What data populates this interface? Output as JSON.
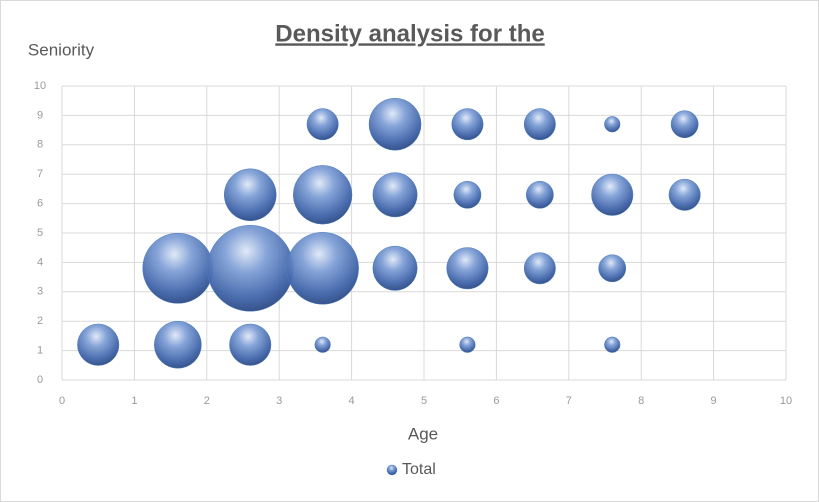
{
  "chart_data": {
    "type": "bubble",
    "title": "Density analysis for the",
    "x_label": "Age",
    "y_label": "Seniority",
    "xlim": [
      0,
      10
    ],
    "xticks": [
      0,
      1,
      2,
      3,
      4,
      5,
      6,
      7,
      8,
      9,
      10
    ],
    "ylim": [
      0,
      10
    ],
    "yticks": [
      0,
      1,
      2,
      3,
      4,
      5,
      6,
      7,
      8,
      9,
      10
    ],
    "grid": true,
    "legend": "bottom",
    "series": [
      {
        "name": "Total",
        "color": "#4f81bd",
        "x": [
          3.6,
          4.6,
          5.6,
          6.6,
          7.6,
          8.6,
          2.6,
          3.6,
          4.6,
          5.6,
          6.6,
          7.6,
          8.6,
          1.6,
          2.6,
          3.6,
          4.6,
          5.6,
          6.6,
          7.6,
          0.5,
          1.6,
          2.6,
          3.6,
          5.6,
          7.6
        ],
        "values": [
          8.7,
          8.7,
          8.7,
          8.7,
          8.7,
          8.7,
          6.3,
          6.3,
          6.3,
          6.3,
          6.3,
          6.3,
          6.3,
          3.8,
          3.8,
          3.8,
          3.8,
          3.8,
          3.8,
          3.8,
          1.2,
          1.2,
          1.2,
          1.2,
          1.2,
          1.2
        ],
        "sizes": [
          4,
          11,
          4,
          4,
          1,
          3,
          11,
          14,
          8,
          3,
          3,
          7,
          4,
          20,
          30,
          21,
          8,
          7,
          4,
          3,
          7,
          9,
          7,
          1,
          1,
          1
        ]
      }
    ]
  }
}
